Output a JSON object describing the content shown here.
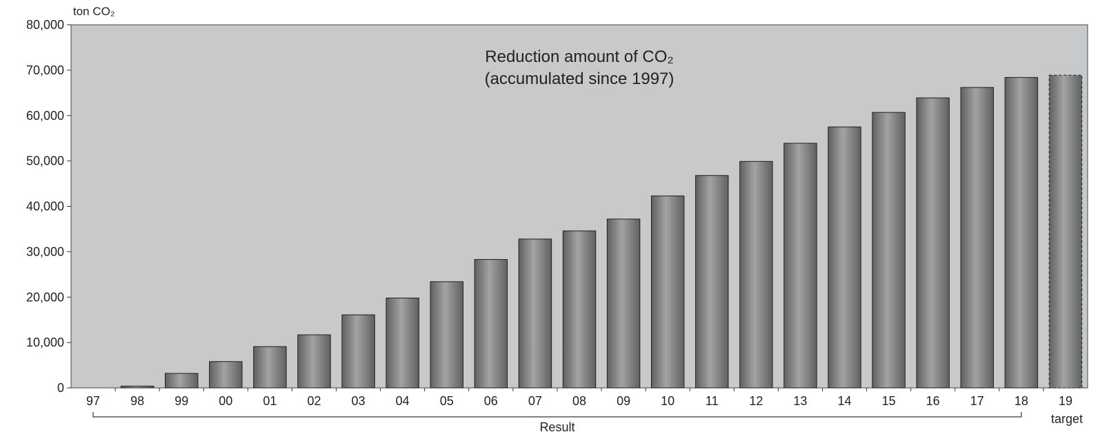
{
  "chart_data": {
    "type": "bar",
    "title_lines": [
      "Reduction amount of CO₂",
      "(accumulated since 1997)"
    ],
    "ylabel": "ton CO₂",
    "xlabel": "",
    "ylim": [
      0,
      80000
    ],
    "yticks": [
      0,
      10000,
      20000,
      30000,
      40000,
      50000,
      60000,
      70000,
      80000
    ],
    "ytick_labels": [
      "0",
      "10,000",
      "20,000",
      "30,000",
      "40,000",
      "50,000",
      "60,000",
      "70,000",
      "80,000"
    ],
    "categories": [
      "97",
      "98",
      "99",
      "00",
      "01",
      "02",
      "03",
      "04",
      "05",
      "06",
      "07",
      "08",
      "09",
      "10",
      "11",
      "12",
      "13",
      "14",
      "15",
      "16",
      "17",
      "18",
      "19"
    ],
    "values": [
      0,
      400,
      3200,
      5800,
      9100,
      11700,
      16100,
      19800,
      23400,
      28300,
      32800,
      34600,
      37200,
      42300,
      46800,
      49900,
      53900,
      57500,
      60700,
      63900,
      66200,
      68400,
      68900
    ],
    "target_index": 22,
    "groups": [
      {
        "label": "Result",
        "from": "97",
        "to": "18"
      },
      {
        "label": "target",
        "from": "19",
        "to": "19"
      }
    ],
    "grid": false,
    "legend": "none",
    "colors": {
      "plot_background": "#c8c9cb",
      "bar_dark": "#5f6062",
      "bar_light": "#a2a3a5",
      "bar_stroke": "#1e1e1e",
      "axis": "#333333"
    }
  }
}
